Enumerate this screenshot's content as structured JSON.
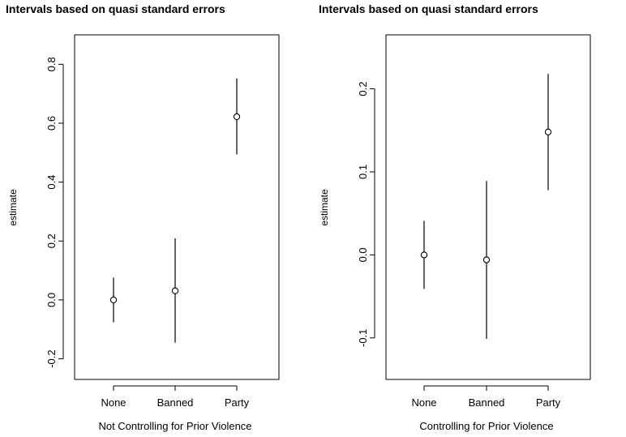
{
  "chart_data": [
    {
      "type": "scatter",
      "title": "Intervals based on quasi standard errors",
      "xlabel": "Not Controlling for Prior Violence",
      "ylabel": "estimate",
      "categories": [
        "None",
        "Banned",
        "Party"
      ],
      "values": [
        0.0,
        0.031,
        0.622
      ],
      "lower": [
        -0.076,
        -0.145,
        0.494
      ],
      "upper": [
        0.076,
        0.209,
        0.752
      ],
      "ylim": [
        -0.27,
        0.9
      ],
      "yticks": [
        -0.2,
        0.0,
        0.2,
        0.4,
        0.6,
        0.8
      ],
      "ytick_labels": [
        "-0.2",
        "0.0",
        "0.2",
        "0.4",
        "0.6",
        "0.8"
      ]
    },
    {
      "type": "scatter",
      "title": "Intervals based on quasi standard errors",
      "xlabel": "Controlling for Prior Violence",
      "ylabel": "estimate",
      "categories": [
        "None",
        "Banned",
        "Party"
      ],
      "values": [
        0.0,
        -0.006,
        0.148
      ],
      "lower": [
        -0.041,
        -0.101,
        0.078
      ],
      "upper": [
        0.041,
        0.089,
        0.218
      ],
      "ylim": [
        -0.15,
        0.265
      ],
      "yticks": [
        -0.1,
        0.0,
        0.1,
        0.2
      ],
      "ytick_labels": [
        "-0.1",
        "0.0",
        "0.1",
        "0.2"
      ]
    }
  ]
}
